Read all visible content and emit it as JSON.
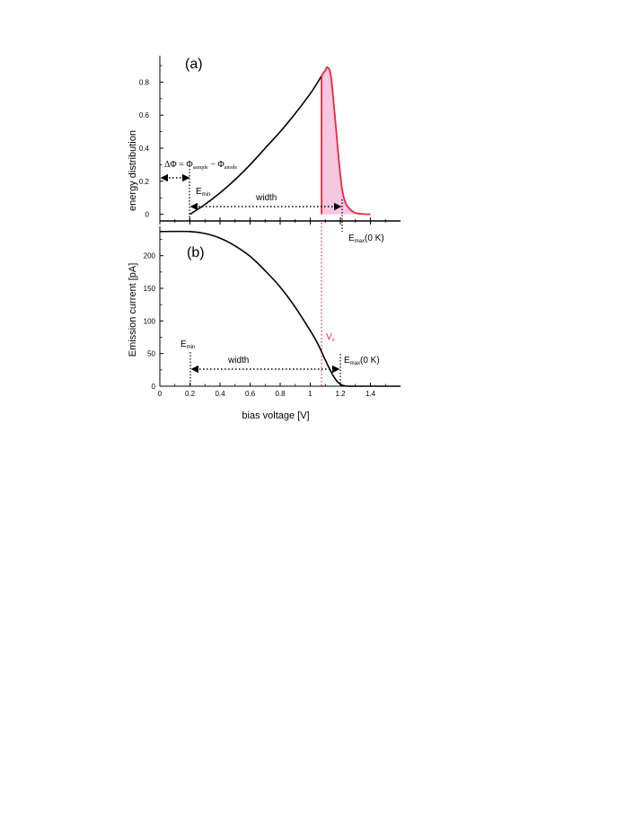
{
  "colors": {
    "axis": "#000000",
    "curve": "#000000",
    "highlight_stroke": "#e8283c",
    "highlight_fill": "#f7c6df",
    "vx_line": "#e8283c"
  },
  "chart_data": [
    {
      "type": "line",
      "panel_label": "(a)",
      "ylabel": "energy distribution",
      "xlim": [
        0,
        1.6
      ],
      "ylim": [
        -0.02,
        0.98
      ],
      "yticks": [
        "0",
        "0.2",
        "0.4",
        "0.6",
        "0.8"
      ],
      "ytick_values": [
        0,
        0.2,
        0.4,
        0.6,
        0.8
      ],
      "series": [
        {
          "x": [
            0.2,
            0.3,
            0.4,
            0.5,
            0.6,
            0.7,
            0.8,
            0.9,
            1.0,
            1.05,
            1.07,
            1.09,
            1.1,
            1.11,
            1.12,
            1.13,
            1.14,
            1.15,
            1.17,
            1.19,
            1.21,
            1.23,
            1.25,
            1.28,
            1.31,
            1.35,
            1.4,
            1.6
          ],
          "y": [
            0,
            0.06,
            0.13,
            0.21,
            0.3,
            0.4,
            0.5,
            0.61,
            0.73,
            0.8,
            0.83,
            0.86,
            0.87,
            0.89,
            0.885,
            0.87,
            0.82,
            0.73,
            0.53,
            0.33,
            0.16,
            0.08,
            0.045,
            0.018,
            0.006,
            0.002,
            0,
            0
          ]
        }
      ],
      "shaded_region": {
        "x_start": 1.075,
        "x_end": 1.35
      },
      "annotations": {
        "delta_phi": "ΔΦ = Φ",
        "phi_sample_sub": "sample",
        "phi_minus": " − Φ",
        "phi_anode_sub": "anode",
        "emin": "E",
        "emin_sub": "min",
        "width": "width",
        "emax": "E",
        "emax_sub": "max",
        "emax_suffix": "(0 K)"
      }
    },
    {
      "type": "line",
      "panel_label": "(b)",
      "ylabel": "Emission current [pA]",
      "xlabel": "bias voltage [V]",
      "xlim": [
        0,
        1.6
      ],
      "ylim": [
        0,
        245
      ],
      "xticks": [
        "0",
        "0.2",
        "0.4",
        "0.6",
        "0.8",
        "1",
        "1.2",
        "1.4"
      ],
      "xtick_values": [
        0,
        0.2,
        0.4,
        0.6,
        0.8,
        1.0,
        1.2,
        1.4
      ],
      "yticks": [
        "0",
        "50",
        "100",
        "150",
        "200"
      ],
      "ytick_values": [
        0,
        50,
        100,
        150,
        200
      ],
      "series": [
        {
          "x": [
            0,
            0.2,
            0.3,
            0.4,
            0.5,
            0.6,
            0.7,
            0.8,
            0.9,
            1.0,
            1.05,
            1.1,
            1.15,
            1.18,
            1.2,
            1.22,
            1.25,
            1.3,
            1.6
          ],
          "y": [
            237,
            237,
            234,
            227,
            215,
            199,
            177,
            152,
            121,
            85,
            65,
            40,
            17,
            7,
            3,
            1,
            0,
            0,
            0
          ]
        }
      ],
      "vx_line_x": 1.075,
      "annotations": {
        "vx": "V",
        "vx_sub": "x",
        "emin": "E",
        "emin_sub": "min",
        "width": "width",
        "emax": "E",
        "emax_sub": "max",
        "emax_suffix": "(0 K)"
      }
    }
  ]
}
